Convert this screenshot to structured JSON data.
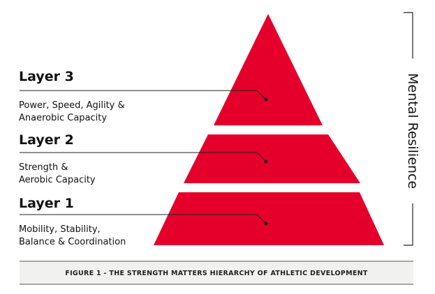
{
  "layers": [
    {
      "title": "Layer 3",
      "lines": [
        "Power, Speed, Agility &",
        "Anaerobic Capacity"
      ]
    },
    {
      "title": "Layer 2",
      "lines": [
        "Strength &",
        "Aerobic Capacity"
      ]
    },
    {
      "title": "Layer 1",
      "lines": [
        "Mobility, Stability,",
        "Balance & Coordination"
      ]
    }
  ],
  "side_label": "Mental Resilience",
  "caption": "FIGURE 1 - THE STRENGTH MATTERS HIERARCHY OF ATHLETIC DEVELOPMENT"
}
